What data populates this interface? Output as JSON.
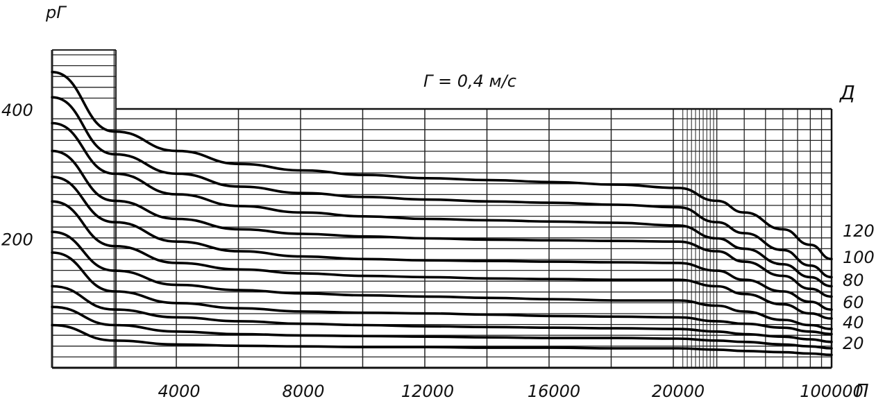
{
  "chart_data": {
    "type": "line",
    "title": "Г = 0,4 м/с",
    "xlabel": "П",
    "ylabel": "рГ",
    "series_label": "Д",
    "x_tick_labels": [
      "4000",
      "8000",
      "12000",
      "16000",
      "20000",
      "100000"
    ],
    "y_tick_labels": [
      "400",
      "200"
    ],
    "y_ticks": [
      400,
      200
    ],
    "series_labels": [
      "120",
      "100",
      "80",
      "60",
      "40",
      "20"
    ],
    "ylim": [
      0,
      500
    ],
    "grid": true,
    "legend": "right",
    "x": [
      0,
      2000,
      4000,
      6000,
      8000,
      10000,
      12000,
      14000,
      16000,
      18000,
      20000,
      30000,
      40000,
      60000,
      80000,
      100000
    ],
    "series": [
      {
        "values": [
          457,
          365,
          335,
          315,
          305,
          298,
          293,
          290,
          287,
          283,
          278,
          258,
          240,
          214,
          190,
          168
        ]
      },
      {
        "values": [
          418,
          330,
          300,
          280,
          270,
          264,
          260,
          257,
          255,
          252,
          248,
          225,
          208,
          182,
          158,
          140
        ]
      },
      {
        "values": [
          378,
          300,
          268,
          250,
          240,
          234,
          230,
          228,
          226,
          224,
          220,
          200,
          184,
          160,
          140,
          126
        ]
      },
      {
        "values": [
          335,
          258,
          230,
          214,
          207,
          203,
          200,
          198,
          197,
          196,
          195,
          180,
          164,
          142,
          122,
          110
        ]
      },
      {
        "values": [
          295,
          225,
          195,
          180,
          172,
          168,
          166,
          165,
          164,
          163,
          162,
          150,
          136,
          118,
          102,
          90
        ]
      },
      {
        "values": [
          257,
          188,
          162,
          152,
          146,
          142,
          140,
          138,
          137,
          136,
          136,
          126,
          114,
          98,
          84,
          76
        ]
      },
      {
        "values": [
          210,
          150,
          128,
          120,
          115,
          112,
          110,
          108,
          106,
          104,
          104,
          96,
          87,
          74,
          66,
          60
        ]
      },
      {
        "values": [
          178,
          118,
          100,
          92,
          87,
          85,
          84,
          82,
          80,
          79,
          78,
          72,
          68,
          62,
          56,
          52
        ]
      },
      {
        "values": [
          126,
          90,
          78,
          72,
          68,
          66,
          64,
          63,
          62,
          61,
          60,
          56,
          52,
          48,
          44,
          40
        ]
      },
      {
        "values": [
          94,
          66,
          56,
          52,
          50,
          49,
          48,
          47,
          46,
          46,
          45,
          42,
          40,
          36,
          33,
          30
        ]
      },
      {
        "values": [
          66,
          42,
          36,
          34,
          33,
          32,
          32,
          31,
          31,
          30,
          30,
          28,
          26,
          24,
          22,
          20
        ]
      }
    ]
  }
}
